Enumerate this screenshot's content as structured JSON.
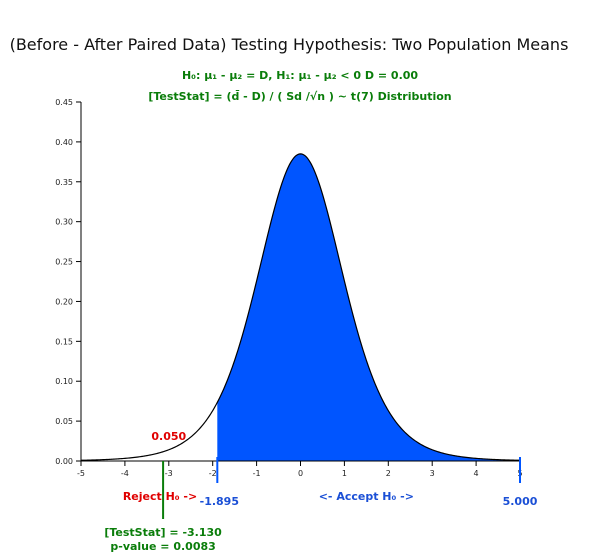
{
  "chart_data": {
    "type": "area",
    "title": "(Before - After Paired Data) Testing Hypothesis: Two Population Means",
    "hypothesis_line": "H₀: μ₁ - μ₂ = D, H₁: μ₁ - μ₂ < 0 D = 0.00",
    "statistic_line": "[TestStat] = (d̄ - D) / ( Sd /√n ) ~ t(7) Distribution",
    "distribution": "t",
    "degrees_of_freedom": 7,
    "xlim": [
      -5,
      5
    ],
    "ylim": [
      0,
      0.45
    ],
    "x_ticks": [
      "-5",
      "-4",
      "-3",
      "-2",
      "-1",
      "0",
      "1",
      "2",
      "3",
      "4",
      "5"
    ],
    "y_ticks": [
      "0.00",
      "0.05",
      "0.10",
      "0.15",
      "0.20",
      "0.25",
      "0.30",
      "0.35",
      "0.40",
      "0.45"
    ],
    "alpha": 0.05,
    "alpha_label": "0.050",
    "critical_value": -1.895,
    "critical_label": "-1.895",
    "accept_upper": 5.0,
    "accept_upper_label": "5.000",
    "reject_label": "Reject H₀ ->",
    "accept_label": "<- Accept H₀ ->",
    "test_statistic": -3.13,
    "test_stat_label": "[TestStat] = -3.130",
    "p_value_label": "p-value = 0.0083",
    "colors": {
      "accept_fill": "#0055ff",
      "curve": "#000000",
      "reject_text": "#e00000",
      "accept_text": "#1a4fd6",
      "stat_text": "#0a7d0a"
    }
  }
}
